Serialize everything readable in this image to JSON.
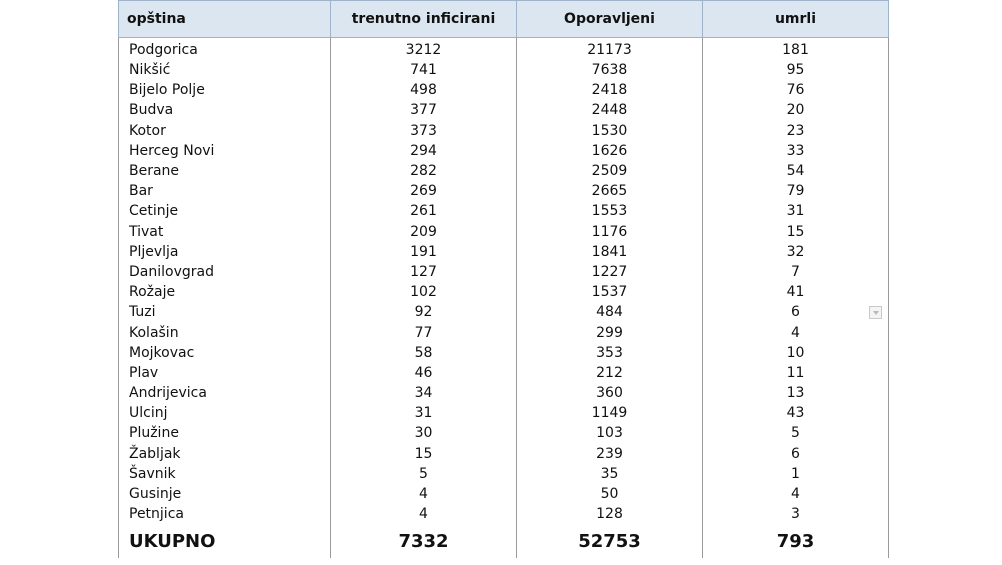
{
  "headers": [
    "opština",
    "trenutno inficirani",
    "Oporavljeni",
    "umrli"
  ],
  "rows": [
    [
      "Podgorica",
      "3212",
      "21173",
      "181"
    ],
    [
      "Nikšić",
      "741",
      "7638",
      "95"
    ],
    [
      "Bijelo Polje",
      "498",
      "2418",
      "76"
    ],
    [
      "Budva",
      "377",
      "2448",
      "20"
    ],
    [
      "Kotor",
      "373",
      "1530",
      "23"
    ],
    [
      "Herceg Novi",
      "294",
      "1626",
      "33"
    ],
    [
      "Berane",
      "282",
      "2509",
      "54"
    ],
    [
      "Bar",
      "269",
      "2665",
      "79"
    ],
    [
      "Cetinje",
      "261",
      "1553",
      "31"
    ],
    [
      "Tivat",
      "209",
      "1176",
      "15"
    ],
    [
      "Pljevlja",
      "191",
      "1841",
      "32"
    ],
    [
      "Danilovgrad",
      "127",
      "1227",
      "7"
    ],
    [
      "Rožaje",
      "102",
      "1537",
      "41"
    ],
    [
      "Tuzi",
      "92",
      "484",
      "6"
    ],
    [
      "Kolašin",
      "77",
      "299",
      "4"
    ],
    [
      "Mojkovac",
      "58",
      "353",
      "10"
    ],
    [
      "Plav",
      "46",
      "212",
      "11"
    ],
    [
      "Andrijevica",
      "34",
      "360",
      "13"
    ],
    [
      "Ulcinj",
      "31",
      "1149",
      "43"
    ],
    [
      "Plužine",
      "30",
      "103",
      "5"
    ],
    [
      "Žabljak",
      "15",
      "239",
      "6"
    ],
    [
      "Šavnik",
      "5",
      "35",
      "1"
    ],
    [
      "Gusinje",
      "4",
      "50",
      "4"
    ],
    [
      "Petnjica",
      "4",
      "128",
      "3"
    ]
  ],
  "total": [
    "UKUPNO",
    "7332",
    "52753",
    "793"
  ]
}
